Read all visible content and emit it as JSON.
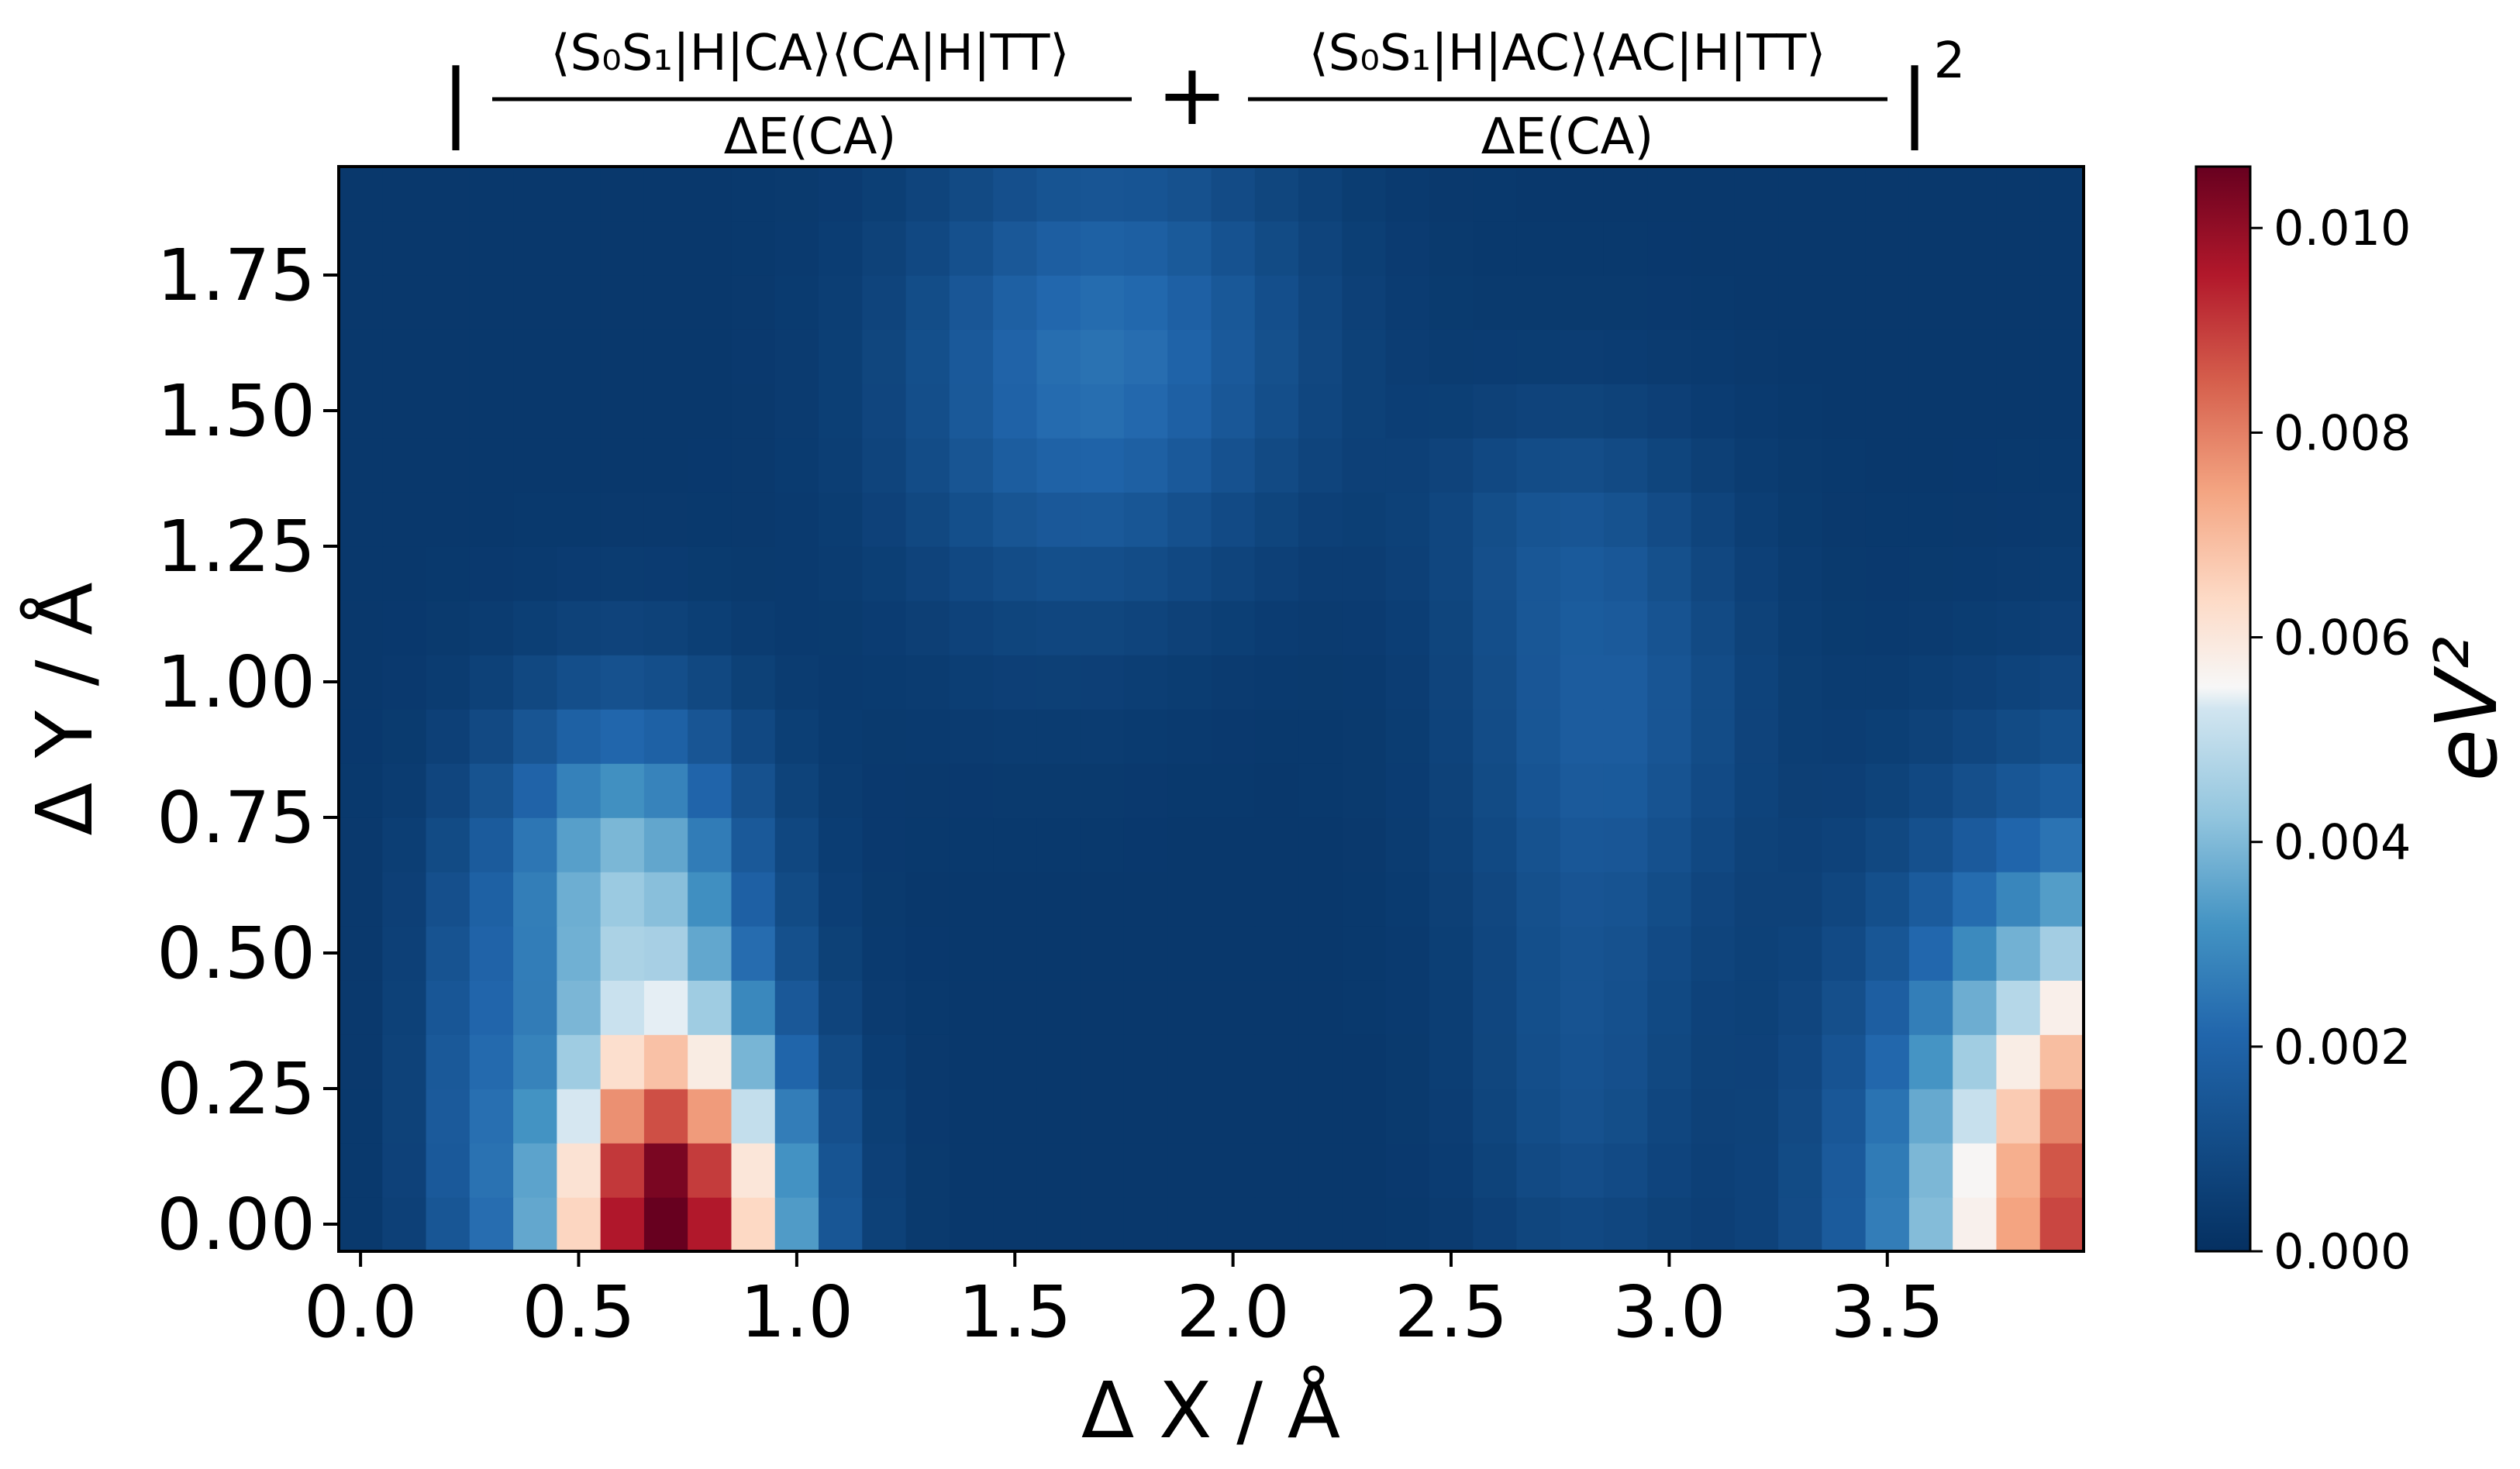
{
  "chart_data": {
    "type": "heatmap",
    "title": {
      "open_bar": "|",
      "close_bar": "|",
      "exponent": "2",
      "plus": "+",
      "term1_numerator": "⟨S₀S₁|H|CA⟩⟨CA|H|TT⟩",
      "term1_denominator": "ΔE(CA)",
      "term2_numerator": "⟨S₀S₁|H|AC⟩⟨AC|H|TT⟩",
      "term2_denominator": "ΔE(CA)"
    },
    "xlabel": "Δ X / Å",
    "ylabel": "Δ Y / Å",
    "colorbar_label": "eV²",
    "colormap": "RdBu_r",
    "x_ticks": [
      0.0,
      0.5,
      1.0,
      1.5,
      2.0,
      2.5,
      3.0,
      3.5
    ],
    "x_tick_labels": [
      "0.0",
      "0.5",
      "1.0",
      "1.5",
      "2.0",
      "2.5",
      "3.0",
      "3.5"
    ],
    "y_ticks": [
      0.0,
      0.25,
      0.5,
      0.75,
      1.0,
      1.25,
      1.5,
      1.75
    ],
    "y_tick_labels": [
      "0.00",
      "0.25",
      "0.50",
      "0.75",
      "1.00",
      "1.25",
      "1.50",
      "1.75"
    ],
    "colorbar_ticks": [
      0.0,
      0.002,
      0.004,
      0.006,
      0.008,
      0.01
    ],
    "colorbar_tick_labels": [
      "0.000",
      "0.002",
      "0.004",
      "0.006",
      "0.008",
      "0.010"
    ],
    "xlim": [
      -0.05,
      3.95
    ],
    "ylim": [
      -0.05,
      1.95
    ],
    "value_range": [
      0.0,
      0.0106
    ],
    "x_grid": {
      "start": 0.0,
      "step": 0.1,
      "count": 40
    },
    "y_grid": {
      "start": 0.0,
      "step": 0.1,
      "count": 20
    },
    "peaks": [
      {
        "x": 0.7,
        "y": 0.0,
        "value": 0.0106,
        "sx": 0.19,
        "sy": 0.27
      },
      {
        "x": 0.6,
        "y": 0.65,
        "value": 0.0034,
        "sx": 0.2,
        "sy": 0.22
      },
      {
        "x": 4.05,
        "y": 0.0,
        "value": 0.0095,
        "sx": 0.33,
        "sy": 0.42
      },
      {
        "x": 1.75,
        "y": 1.62,
        "value": 0.0017,
        "sx": 0.3,
        "sy": 0.27
      },
      {
        "x": 1.55,
        "y": 1.45,
        "value": 0.0006,
        "sx": 0.25,
        "sy": 0.3
      },
      {
        "x": 2.85,
        "y": 0.95,
        "value": 0.0014,
        "sx": 0.22,
        "sy": 0.3
      },
      {
        "x": 2.8,
        "y": 0.25,
        "value": 0.0009,
        "sx": 0.17,
        "sy": 0.28
      },
      {
        "x": 2.7,
        "y": 1.3,
        "value": 0.0005,
        "sx": 0.2,
        "sy": 0.15
      },
      {
        "x": 0.25,
        "y": 0.2,
        "value": 0.0012,
        "sx": 0.09,
        "sy": 0.3
      }
    ],
    "background_value": 0.0003,
    "grid": false
  }
}
